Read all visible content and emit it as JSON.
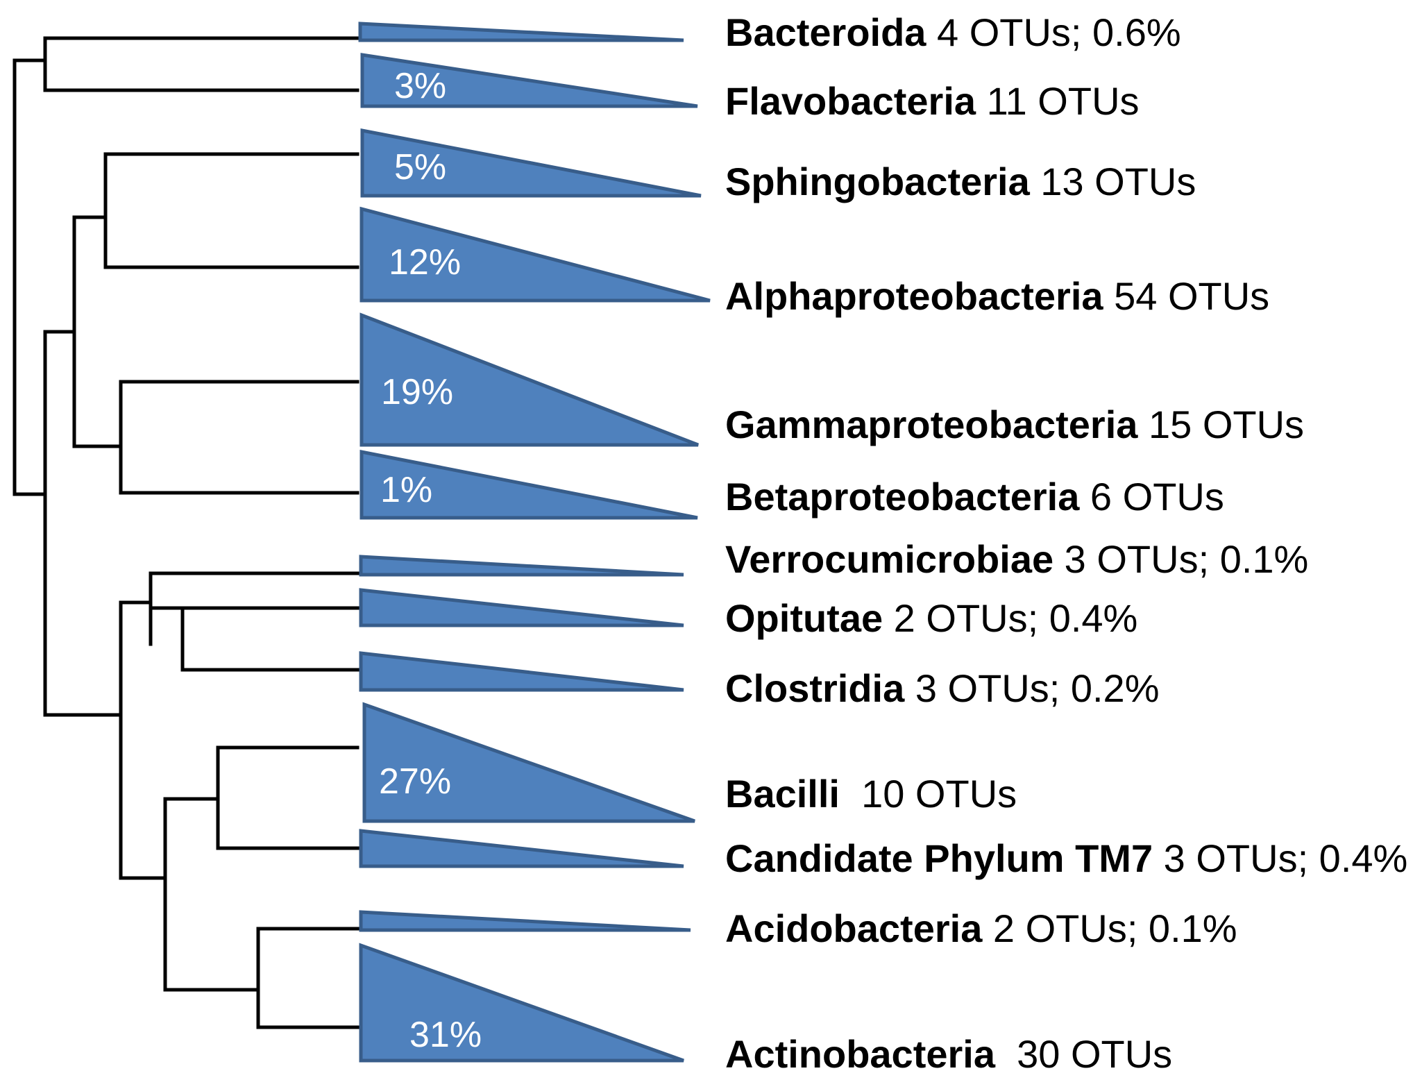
{
  "colors": {
    "clade_fill": "#4f81bd",
    "clade_stroke": "#385d8a",
    "branch": "#000000"
  },
  "clades": [
    {
      "name": "Bacteroida",
      "info": " 4 OTUs; 0.6%",
      "percent": ""
    },
    {
      "name": "Flavobacteria",
      "info": " 11 OTUs",
      "percent": "3%"
    },
    {
      "name": "Sphingobacteria",
      "info": " 13 OTUs",
      "percent": "5%"
    },
    {
      "name": "Alphaproteobacteria",
      "info": " 54 OTUs",
      "percent": "12%"
    },
    {
      "name": "Gammaproteobacteria",
      "info": " 15 OTUs",
      "percent": "19%"
    },
    {
      "name": "Betaproteobacteria",
      "info": " 6 OTUs",
      "percent": "1%"
    },
    {
      "name": "Verrocumicrobiae",
      "info": " 3 OTUs; 0.1%",
      "percent": ""
    },
    {
      "name": "Opitutae",
      "info": " 2 OTUs; 0.4%",
      "percent": ""
    },
    {
      "name": "Clostridia",
      "info": " 3 OTUs; 0.2%",
      "percent": ""
    },
    {
      "name": "Bacilli",
      "info": "  10 OTUs",
      "percent": "27%"
    },
    {
      "name": "Candidate Phylum TM7",
      "info": " 3 OTUs; 0.4%",
      "percent": ""
    },
    {
      "name": "Acidobacteria",
      "info": " 2 OTUs; 0.1%",
      "percent": ""
    },
    {
      "name": "Actinobacteria",
      "info": "  30 OTUs",
      "percent": "31%"
    }
  ]
}
